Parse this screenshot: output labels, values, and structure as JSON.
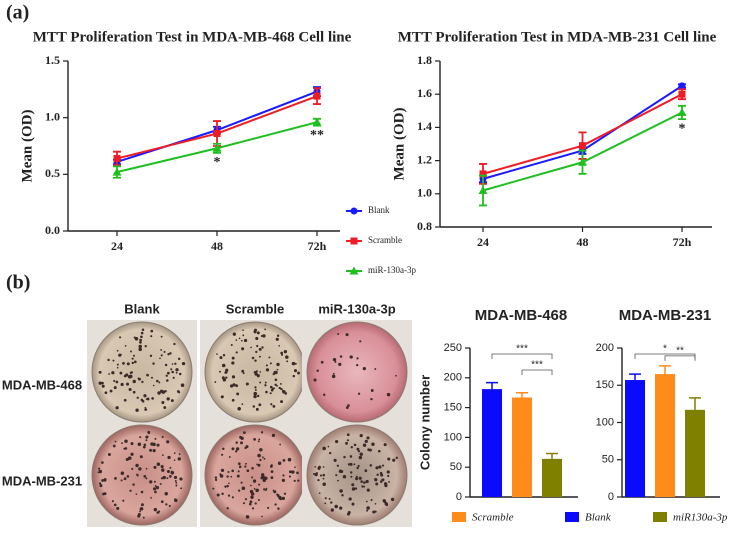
{
  "panels": [
    "(a)",
    "(b)"
  ],
  "plates": {
    "columns": [
      "Blank",
      "Scramble",
      "miR-130a-3p"
    ],
    "rows": [
      "MDA-MB-468",
      "MDA-MB-231"
    ]
  },
  "bar_legend": [
    {
      "label": "Scramble",
      "color": "#ff8c1a"
    },
    {
      "label": "Blank",
      "color": "#0a0aff"
    },
    {
      "label": "miR130a-3p",
      "color": "#7f7f00"
    }
  ],
  "chart_data": [
    {
      "type": "line",
      "title": "MTT Proliferation Test in MDA-MB-468 Cell line",
      "y_label": "Mean (OD)",
      "categories": [
        "24",
        "48",
        "72h"
      ],
      "series": [
        {
          "name": "Blank",
          "color": "#1a1aff",
          "values": [
            0.61,
            0.89,
            1.23
          ],
          "errors": [
            0.02,
            0.03,
            0.04
          ]
        },
        {
          "name": "Scramble",
          "color": "#ee1c25",
          "values": [
            0.64,
            0.86,
            1.19
          ],
          "errors": [
            0.06,
            0.11,
            0.07
          ]
        },
        {
          "name": "miR-130a-3p",
          "color": "#1fbf1f",
          "values": [
            0.52,
            0.73,
            0.96
          ],
          "errors": [
            0.05,
            0.04,
            0.03
          ]
        }
      ],
      "significance": [
        null,
        "*",
        "**"
      ],
      "ylim": [
        0,
        1.5
      ],
      "yticks": [
        {
          "value": 0,
          "label": "0.0"
        },
        0.5,
        {
          "value": 1,
          "label": "1.0"
        },
        1.5
      ]
    },
    {
      "type": "line",
      "title": "MTT Proliferation Test in MDA-MB-231 Cell line",
      "y_label": "Mean (OD)",
      "categories": [
        "24",
        "48",
        "72h"
      ],
      "series": [
        {
          "color": "#1a1aff",
          "values": [
            1.09,
            1.26,
            1.65
          ],
          "errors": [
            0.02,
            0.02,
            0.01
          ]
        },
        {
          "color": "#ee1c25",
          "values": [
            1.12,
            1.29,
            1.6
          ],
          "errors": [
            0.06,
            0.08,
            0.03
          ]
        },
        {
          "color": "#1fbf1f",
          "values": [
            1.02,
            1.19,
            1.49
          ],
          "errors": [
            0.09,
            0.07,
            0.04
          ]
        }
      ],
      "significance": [
        null,
        null,
        "*"
      ],
      "ylim": [
        0.8,
        1.8
      ],
      "yticks": [
        0.8,
        {
          "value": 1,
          "label": "1.0"
        },
        1.2,
        1.4,
        1.6,
        1.8
      ]
    },
    {
      "type": "bar",
      "title": "MDA-MB-468",
      "y_label": "Colony number",
      "categories": [
        null,
        null,
        null
      ],
      "values": [
        181,
        167,
        64
      ],
      "errors": [
        11,
        8,
        9
      ],
      "colors": [
        "#0a0aff",
        "#ff8c1a",
        "#7f7f00"
      ],
      "significance": [
        "***",
        "***",
        null
      ],
      "ylim": [
        0,
        250
      ],
      "yticks": [
        0,
        50,
        100,
        150,
        200,
        250
      ]
    },
    {
      "type": "bar",
      "title": "MDA-MB-231",
      "categories": [
        null,
        null,
        null
      ],
      "values": [
        157,
        165,
        117
      ],
      "errors": [
        8,
        11,
        16
      ],
      "colors": [
        "#0a0aff",
        "#ff8c1a",
        "#7f7f00"
      ],
      "significance": [
        "*",
        "**",
        null
      ],
      "ylim": [
        0,
        200
      ],
      "yticks": [
        0,
        50,
        100,
        150,
        200
      ]
    }
  ]
}
